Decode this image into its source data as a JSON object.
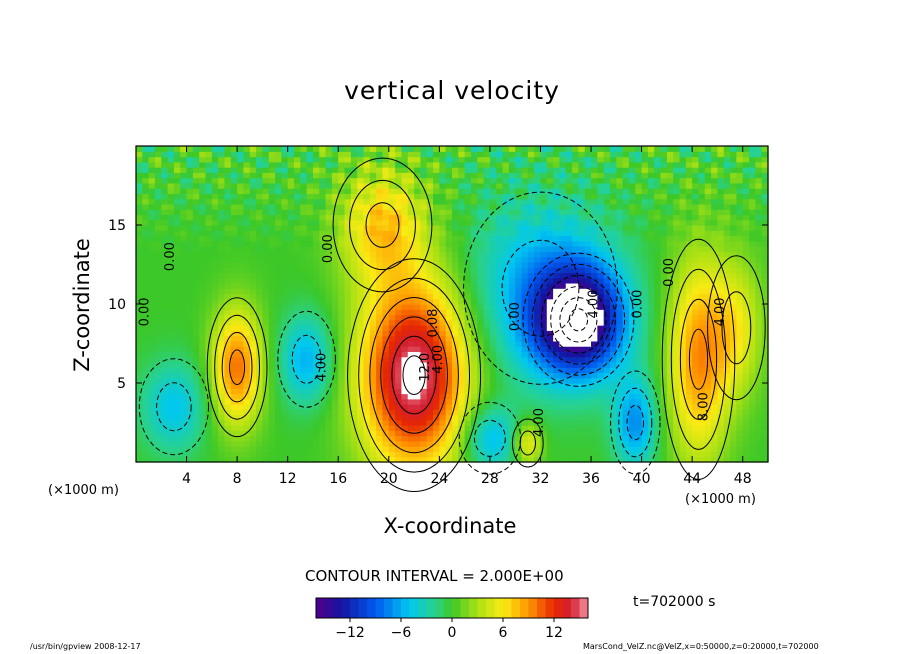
{
  "chart_data": {
    "type": "heatmap",
    "title": "vertical velocity",
    "xlabel": "X-coordinate",
    "ylabel": "Z-coordinate",
    "x_unit_left": "(×1000 m)",
    "x_unit_right": "(×1000 m)",
    "xlim": [
      0,
      50
    ],
    "ylim": [
      0,
      20
    ],
    "x_ticks": [
      4,
      8,
      12,
      16,
      20,
      24,
      28,
      32,
      36,
      40,
      44,
      48
    ],
    "x_tick_labels": [
      "4",
      "8",
      "12",
      "16",
      "20",
      "24",
      "28",
      "32",
      "36",
      "40",
      "44",
      "48"
    ],
    "y_ticks": [
      5,
      10,
      15
    ],
    "y_tick_labels": [
      "5",
      "10",
      "15"
    ],
    "contour_interval_text": "CONTOUR INTERVAL = 2.000E+00",
    "colorbar": {
      "min": -16,
      "max": 16,
      "ticks": [
        -12,
        -6,
        0,
        6,
        12
      ],
      "tick_labels": [
        "−12",
        "−6",
        "0",
        "6",
        "12"
      ]
    },
    "contour_labels": [
      {
        "text": "0.00",
        "x": 3.0,
        "z": 13.0
      },
      {
        "text": "0.00",
        "x": 1.0,
        "z": 9.5
      },
      {
        "text": "0.00",
        "x": 15.5,
        "z": 13.5
      },
      {
        "text": "4.00",
        "x": 15.0,
        "z": 6.0
      },
      {
        "text": "12.0",
        "x": 23.2,
        "z": 6.0
      },
      {
        "text": "4.00",
        "x": 24.2,
        "z": 6.5
      },
      {
        "text": "0.08",
        "x": 23.8,
        "z": 8.8
      },
      {
        "text": "0.00",
        "x": 30.3,
        "z": 9.2
      },
      {
        "text": "0.00",
        "x": 40.0,
        "z": 10.0
      },
      {
        "text": "4.00",
        "x": 36.5,
        "z": 10.0
      },
      {
        "text": "0.00",
        "x": 42.5,
        "z": 12.0
      },
      {
        "text": "4.00",
        "x": 46.5,
        "z": 9.5
      },
      {
        "text": "8.00",
        "x": 45.2,
        "z": 3.5
      },
      {
        "text": "4.00",
        "x": 32.2,
        "z": 2.5
      }
    ],
    "features": [
      {
        "x": 22.0,
        "z": 5.5,
        "w_peak": 16,
        "sx": 3.0,
        "sz": 4.2,
        "saturated": true
      },
      {
        "x": 35.0,
        "z": 9.0,
        "w_peak": -16,
        "sx": 2.5,
        "sz": 2.4,
        "saturated": true
      },
      {
        "x": 8.0,
        "z": 6.0,
        "w_peak": 10,
        "sx": 1.4,
        "sz": 2.6
      },
      {
        "x": 44.5,
        "z": 6.5,
        "w_peak": 9,
        "sx": 1.7,
        "sz": 4.5
      },
      {
        "x": 13.5,
        "z": 6.5,
        "w_peak": -6,
        "sx": 1.5,
        "sz": 2.0
      },
      {
        "x": 39.5,
        "z": 2.5,
        "w_peak": -7,
        "sx": 1.2,
        "sz": 2.0
      },
      {
        "x": 28.0,
        "z": 1.5,
        "w_peak": -6,
        "sx": 1.6,
        "sz": 1.5
      },
      {
        "x": 3.0,
        "z": 3.5,
        "w_peak": -5,
        "sx": 1.8,
        "sz": 2.0
      },
      {
        "x": 31.0,
        "z": 1.2,
        "w_peak": 6,
        "sx": 0.8,
        "sz": 1.0
      },
      {
        "x": 19.5,
        "z": 15.0,
        "w_peak": 7,
        "sx": 2.4,
        "sz": 2.6
      },
      {
        "x": 32.0,
        "z": 11.0,
        "w_peak": -6,
        "sx": 4.0,
        "sz": 4.0
      },
      {
        "x": 47.5,
        "z": 8.5,
        "w_peak": 5,
        "sx": 1.5,
        "sz": 3.0
      }
    ]
  },
  "annotations": {
    "time_label": "t=702000  s",
    "footer_left": "/usr/bin/gpview   2008-12-17",
    "footer_right": "MarsCond_VelZ.nc@VelZ,x=0:50000,z=0:20000,t=702000"
  }
}
